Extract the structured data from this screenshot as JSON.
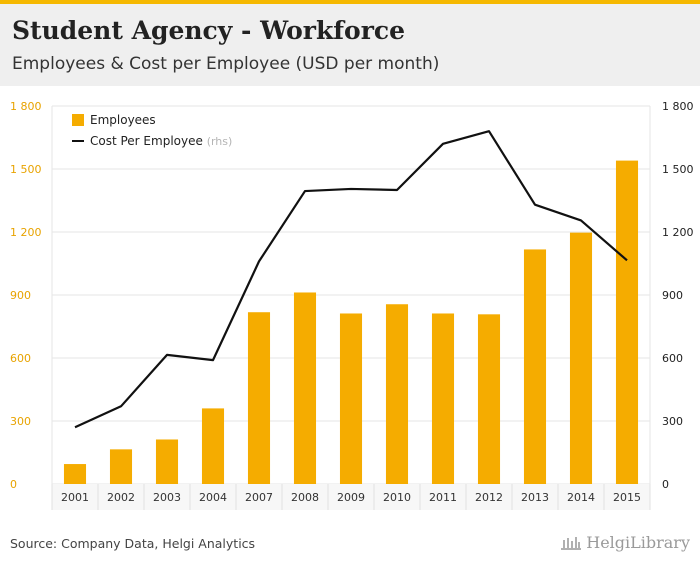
{
  "header": {
    "title": "Student Agency - Workforce",
    "subtitle": "Employees & Cost per Employee (USD per month)"
  },
  "source": "Source: Company Data, Helgi Analytics",
  "logo": {
    "text": "HelgiLibrary",
    "icon": "library-building-icon"
  },
  "colors": {
    "accent": "#f5b800",
    "bar": "#f5ac00",
    "line": "#111111",
    "header_bg": "#efefef",
    "grid": "#e6e6e6",
    "left_ticks": "#e8a300",
    "right_ticks": "#222222"
  },
  "chart_data": {
    "type": "bar",
    "categories": [
      "2001",
      "2002",
      "2003",
      "2004",
      "2007",
      "2008",
      "2009",
      "2010",
      "2011",
      "2012",
      "2013",
      "2014",
      "2015"
    ],
    "series": [
      {
        "name": "Employees",
        "type": "bar",
        "axis": "left",
        "values": [
          95,
          165,
          212,
          360,
          818,
          912,
          812,
          856,
          812,
          808,
          1117,
          1197,
          1540
        ]
      },
      {
        "name": "Cost Per Employee",
        "name_suffix": "(rhs)",
        "type": "line",
        "axis": "right",
        "values": [
          270,
          370,
          615,
          590,
          1060,
          1395,
          1405,
          1400,
          1620,
          1680,
          1330,
          1255,
          1065
        ]
      }
    ],
    "y_left": {
      "ticks": [
        "0",
        "300",
        "600",
        "900",
        "1 200",
        "1 500",
        "1 800"
      ],
      "lim": [
        0,
        1800
      ]
    },
    "y_right": {
      "ticks": [
        "0",
        "300",
        "600",
        "900",
        "1 200",
        "1 500",
        "1 800"
      ],
      "lim": [
        0,
        1800
      ]
    },
    "grid": true,
    "legend_position": "top-left"
  }
}
